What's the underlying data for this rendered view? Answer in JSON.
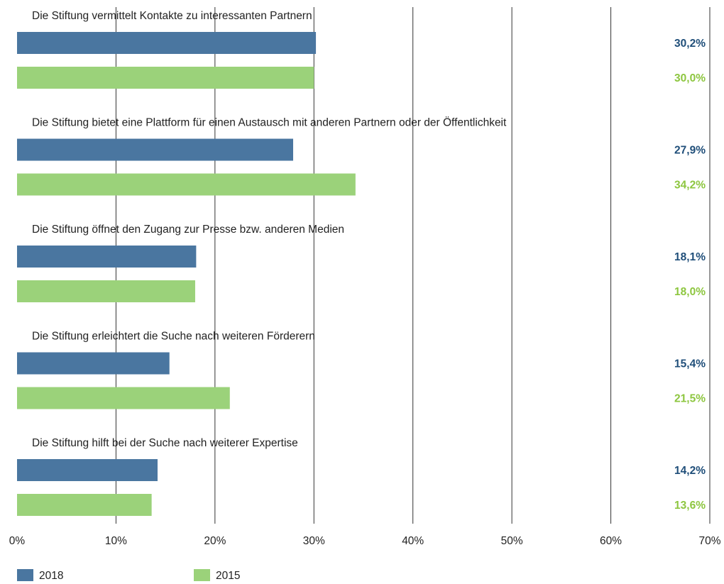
{
  "colors": {
    "2018": "#4a76a0",
    "2015": "#9bd27a",
    "label_2018": "#1f4e79",
    "label_2015": "#8dc63f",
    "grid": "#333333"
  },
  "chart_data": {
    "type": "bar",
    "orientation": "horizontal",
    "categories": [
      "Die Stiftung vermittelt Kontakte zu interessanten Partnern",
      "Die Stiftung bietet eine Plattform für einen Austausch mit anderen Partnern oder der Öffentlichkeit",
      "Die Stiftung öffnet den Zugang zur Presse bzw. anderen Medien",
      "Die Stiftung erleichtert die Suche nach weiteren Förderern",
      "Die Stiftung hilft bei der Suche nach weiterer Expertise"
    ],
    "series": [
      {
        "name": "2018",
        "values": [
          30.2,
          27.9,
          18.1,
          15.4,
          14.2
        ],
        "labels": [
          "30,2%",
          "27,9%",
          "18,1%",
          "15,4%",
          "14,2%"
        ]
      },
      {
        "name": "2015",
        "values": [
          30.0,
          34.2,
          18.0,
          21.5,
          13.6
        ],
        "labels": [
          "30,0%",
          "34,2%",
          "18,0%",
          "21,5%",
          "13,6%"
        ]
      }
    ],
    "xlim": [
      0,
      70
    ],
    "ticks": [
      0,
      10,
      20,
      30,
      40,
      50,
      60,
      70
    ],
    "tick_labels": [
      "0%",
      "10%",
      "20%",
      "30%",
      "40%",
      "50%",
      "60%",
      "70%"
    ],
    "grid": true,
    "legend_position": "bottom-left"
  }
}
